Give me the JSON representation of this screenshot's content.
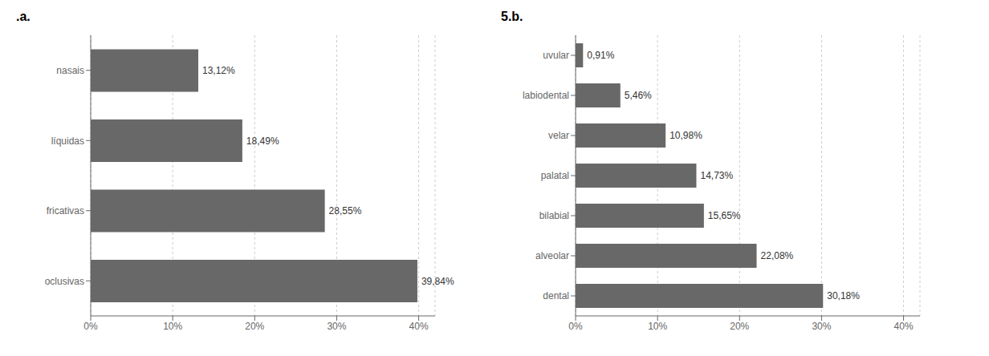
{
  "chart_data": [
    {
      "type": "bar",
      "title": ".a.",
      "orientation": "horizontal",
      "categories": [
        "oclusivas",
        "fricativas",
        "líquidas",
        "nasais"
      ],
      "values": [
        39.84,
        28.55,
        18.49,
        13.12
      ],
      "value_labels": [
        "39,84%",
        "28,55%",
        "18,49%",
        "13,12%"
      ],
      "data_labels": true,
      "color": "#686868",
      "xlim": [
        0,
        42
      ],
      "xticks": [
        {
          "value": 0,
          "label": "0%"
        },
        {
          "value": 10,
          "label": "10%"
        },
        {
          "value": 20,
          "label": "20%"
        },
        {
          "value": 30,
          "label": "30%"
        },
        {
          "value": 40,
          "label": "40%"
        }
      ],
      "grid": true
    },
    {
      "type": "bar",
      "title": "5.b.",
      "orientation": "horizontal",
      "categories": [
        "dental",
        "alveolar",
        "bilabial",
        "palatal",
        "velar",
        "labiodental",
        "uvular"
      ],
      "values": [
        30.18,
        22.08,
        15.65,
        14.73,
        10.98,
        5.46,
        0.91
      ],
      "value_labels": [
        "30,18%",
        "22,08%",
        "15,65%",
        "14,73%",
        "10,98%",
        "5,46%",
        "0,91%"
      ],
      "data_labels": true,
      "color": "#686868",
      "xlim": [
        0,
        42
      ],
      "xticks": [
        {
          "value": 0,
          "label": "0%"
        },
        {
          "value": 10,
          "label": "10%"
        },
        {
          "value": 20,
          "label": "20%"
        },
        {
          "value": 30,
          "label": "30%"
        },
        {
          "value": 40,
          "label": "40%"
        }
      ],
      "grid": true
    }
  ]
}
